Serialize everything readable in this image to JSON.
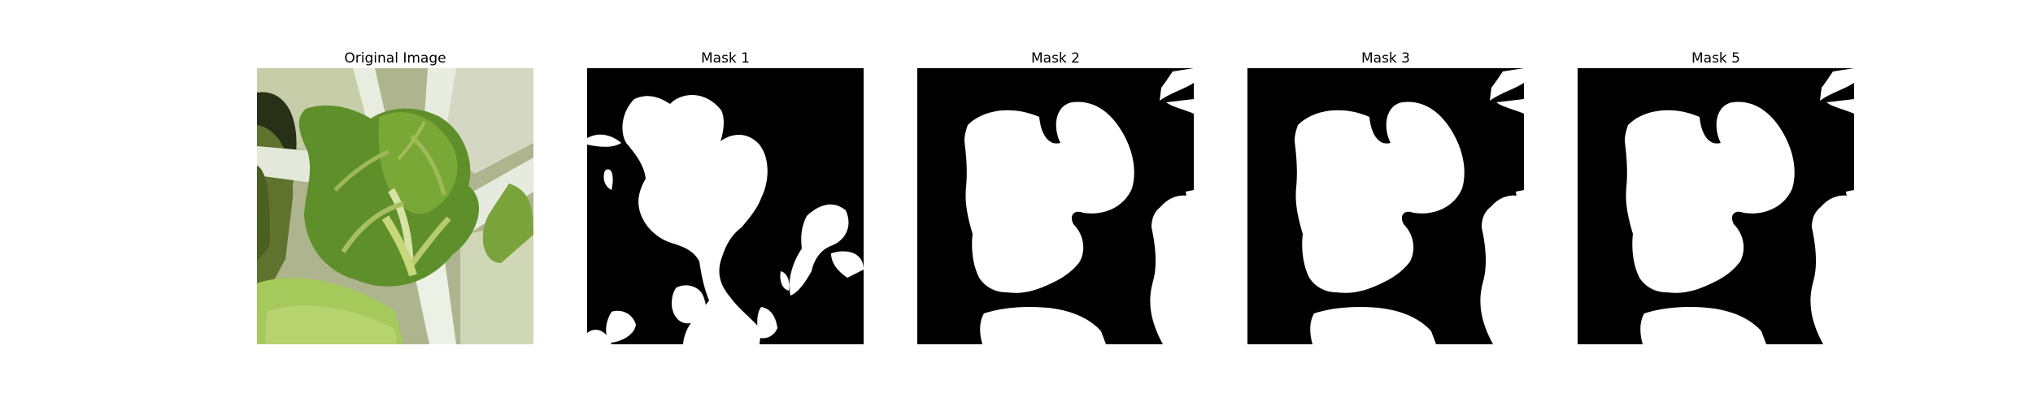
{
  "figure": {
    "background": "#ffffff",
    "panels": [
      {
        "id": "original",
        "title": "Original Image",
        "kind": "photo"
      },
      {
        "id": "mask1",
        "title": "Mask 1",
        "kind": "mask"
      },
      {
        "id": "mask2",
        "title": "Mask 2",
        "kind": "mask"
      },
      {
        "id": "mask3",
        "title": "Mask 3",
        "kind": "mask"
      },
      {
        "id": "mask5",
        "title": "Mask 5",
        "kind": "mask"
      }
    ]
  },
  "colors": {
    "mask_background": "#000000",
    "mask_foreground": "#ffffff",
    "leaf_green": "#5f8f2a",
    "leaf_light": "#b9cf72",
    "stem_white": "#e6eadf",
    "soil_dark": "#273019"
  }
}
